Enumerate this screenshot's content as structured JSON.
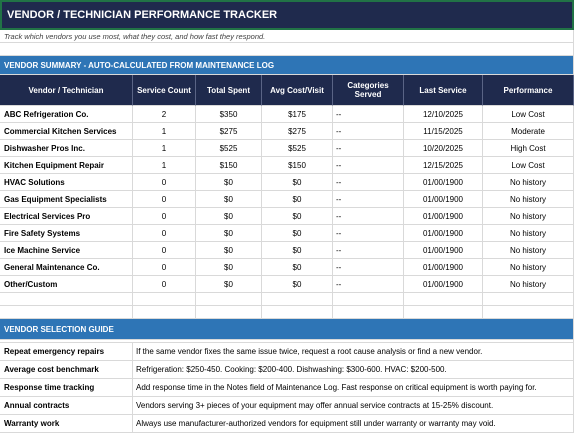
{
  "header": {
    "title": "VENDOR / TECHNICIAN PERFORMANCE TRACKER",
    "subtitle": "Track which vendors you use most, what they cost, and how fast they respond."
  },
  "summary": {
    "title": "VENDOR SUMMARY - AUTO-CALCULATED FROM MAINTENANCE LOG",
    "columns": [
      "Vendor / Technician",
      "Service Count",
      "Total Spent",
      "Avg Cost/Visit",
      "Categories Served",
      "Last Service",
      "Performance"
    ],
    "rows": [
      [
        "ABC Refrigeration Co.",
        "2",
        "$350",
        "$175",
        "--",
        "12/10/2025",
        "Low Cost"
      ],
      [
        "Commercial Kitchen Services",
        "1",
        "$275",
        "$275",
        "--",
        "11/15/2025",
        "Moderate"
      ],
      [
        "Dishwasher Pros Inc.",
        "1",
        "$525",
        "$525",
        "--",
        "10/20/2025",
        "High Cost"
      ],
      [
        "Kitchen Equipment Repair",
        "1",
        "$150",
        "$150",
        "--",
        "12/15/2025",
        "Low Cost"
      ],
      [
        "HVAC Solutions",
        "0",
        "$0",
        "$0",
        "--",
        "01/00/1900",
        "No history"
      ],
      [
        "Gas Equipment Specialists",
        "0",
        "$0",
        "$0",
        "--",
        "01/00/1900",
        "No history"
      ],
      [
        "Electrical Services Pro",
        "0",
        "$0",
        "$0",
        "--",
        "01/00/1900",
        "No history"
      ],
      [
        "Fire Safety Systems",
        "0",
        "$0",
        "$0",
        "--",
        "01/00/1900",
        "No history"
      ],
      [
        "Ice Machine Service",
        "0",
        "$0",
        "$0",
        "--",
        "01/00/1900",
        "No history"
      ],
      [
        "General Maintenance Co.",
        "0",
        "$0",
        "$0",
        "--",
        "01/00/1900",
        "No history"
      ],
      [
        "Other/Custom",
        "0",
        "$0",
        "$0",
        "--",
        "01/00/1900",
        "No history"
      ]
    ]
  },
  "guide": {
    "title": "VENDOR SELECTION GUIDE",
    "rows": [
      [
        "Repeat emergency repairs",
        "If the same vendor fixes the same issue twice, request a root cause analysis or find a new vendor."
      ],
      [
        "Average cost benchmark",
        "Refrigeration: $250-450. Cooking: $200-400. Dishwashing: $300-600. HVAC: $200-500."
      ],
      [
        "Response time tracking",
        "Add response time in the Notes field of Maintenance Log. Fast response on critical equipment is worth paying for."
      ],
      [
        "Annual contracts",
        "Vendors serving 3+ pieces of your equipment may offer annual service contracts at 15-25% discount."
      ],
      [
        "Warranty work",
        "Always use manufacturer-authorized vendors for equipment still under warranty or warranty may void."
      ]
    ]
  }
}
